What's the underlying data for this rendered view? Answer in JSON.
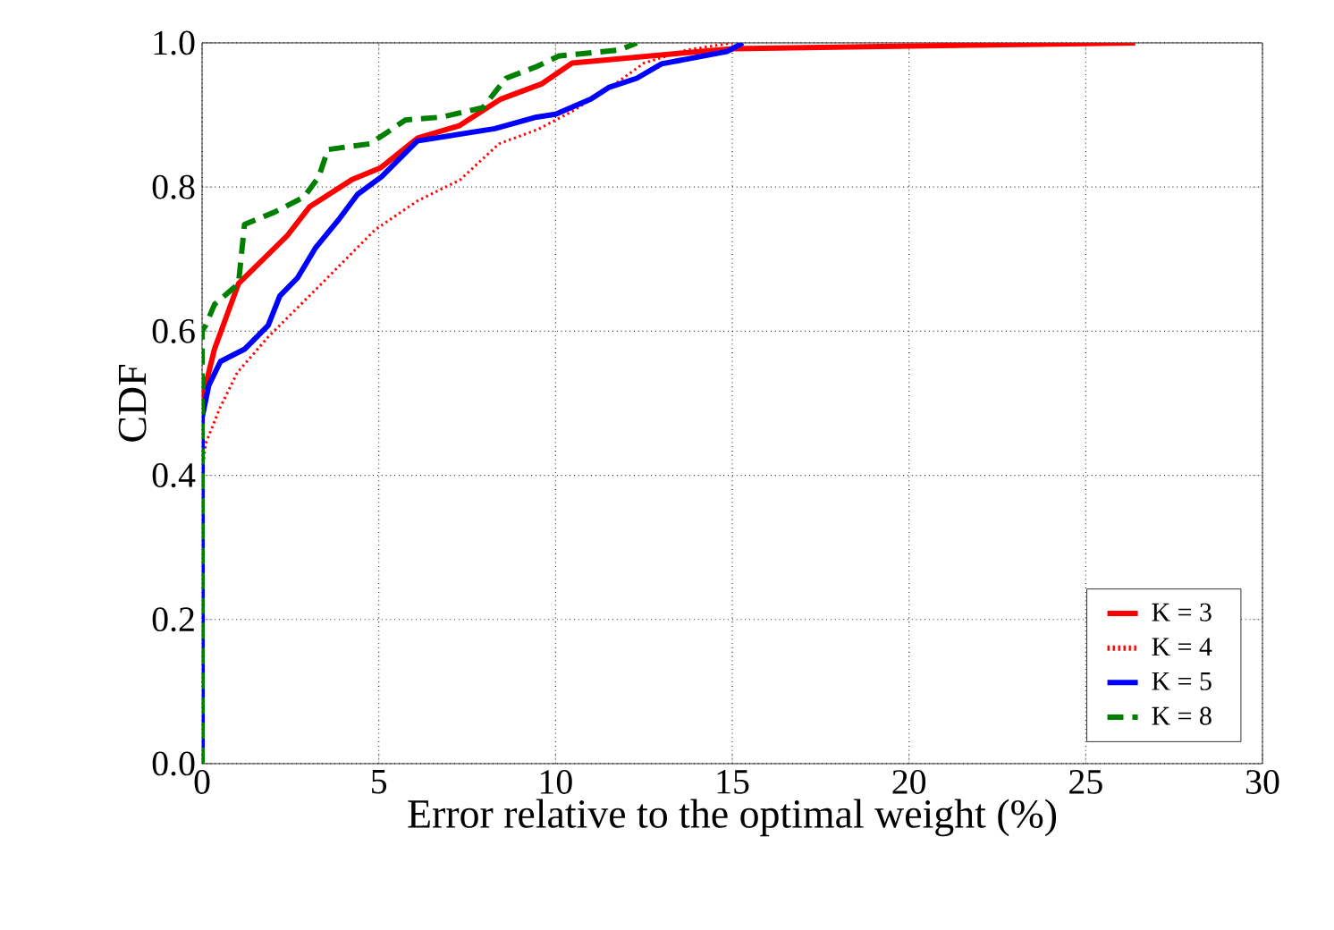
{
  "chart_data": {
    "type": "line",
    "xlabel": "Error relative to the optimal weight (%)",
    "ylabel": "CDF",
    "xlim": [
      0,
      30
    ],
    "ylim": [
      0,
      1
    ],
    "xticks": [
      0,
      5,
      10,
      15,
      20,
      25,
      30
    ],
    "yticks": [
      {
        "value": 0,
        "label": "0.0"
      },
      {
        "value": 0.2,
        "label": "0.2"
      },
      {
        "value": 0.4,
        "label": "0.4"
      },
      {
        "value": 0.6,
        "label": "0.6"
      },
      {
        "value": 0.8,
        "label": "0.8"
      },
      {
        "value": 1,
        "label": "1.0"
      }
    ],
    "grid": true,
    "legend": "bottom right",
    "marker": "none",
    "series": [
      {
        "name": "K = 3",
        "color": "#ff0000",
        "line_style": "solid",
        "x": [
          0,
          0,
          0.1,
          0.35,
          1.03,
          2.4,
          3.05,
          4.23,
          5.06,
          6.1,
          7.27,
          8.45,
          9.6,
          10.47,
          15.0,
          26.4
        ],
        "values": [
          0,
          0.52,
          0.525,
          0.575,
          0.666,
          0.732,
          0.773,
          0.81,
          0.827,
          0.868,
          0.885,
          0.922,
          0.943,
          0.972,
          0.992,
          1.0
        ]
      },
      {
        "name": "K = 4",
        "color": "#ff0000",
        "line_style": "dotted",
        "x": [
          0,
          0,
          0.1,
          0.5,
          1.0,
          1.87,
          3.2,
          4.9,
          6.1,
          7.3,
          8.4,
          9.5,
          10.47,
          11.8,
          12.5,
          13.7,
          15.0
        ],
        "values": [
          0,
          0.4,
          0.444,
          0.493,
          0.543,
          0.592,
          0.657,
          0.741,
          0.781,
          0.81,
          0.86,
          0.88,
          0.905,
          0.947,
          0.972,
          0.99,
          1.0
        ]
      },
      {
        "name": "K = 5",
        "color": "#0000ff",
        "line_style": "solid",
        "x": [
          0,
          0,
          0.19,
          0.52,
          1.2,
          1.87,
          2.2,
          2.7,
          3.2,
          3.9,
          4.4,
          5.07,
          6.09,
          8.28,
          9.46,
          10.0,
          11.0,
          11.5,
          12.3,
          13.0,
          14.85,
          15.3
        ],
        "values": [
          0,
          0.48,
          0.525,
          0.558,
          0.575,
          0.608,
          0.649,
          0.674,
          0.715,
          0.757,
          0.79,
          0.814,
          0.864,
          0.881,
          0.897,
          0.901,
          0.922,
          0.938,
          0.951,
          0.971,
          0.988,
          1.0
        ]
      },
      {
        "name": "K = 8",
        "color": "#008000",
        "line_style": "dashed",
        "x": [
          0,
          0,
          0.1,
          0.35,
          1.03,
          1.2,
          2.04,
          2.88,
          3.3,
          3.56,
          4.74,
          5.24,
          5.75,
          6.76,
          7.94,
          8.6,
          9.46,
          10.1,
          11.8,
          12.3
        ],
        "values": [
          0,
          0.6,
          0.608,
          0.637,
          0.666,
          0.748,
          0.765,
          0.786,
          0.814,
          0.852,
          0.86,
          0.876,
          0.893,
          0.897,
          0.91,
          0.951,
          0.967,
          0.982,
          0.99,
          1.0
        ]
      }
    ]
  }
}
